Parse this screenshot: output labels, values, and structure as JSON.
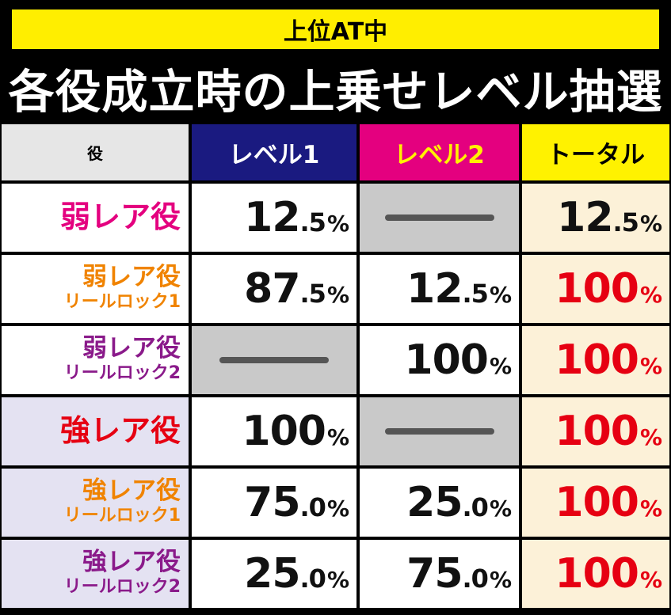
{
  "header": {
    "band_text": "上位AT中",
    "title": "各役成立時の上乗せレベル抽選"
  },
  "table": {
    "columns": [
      "役",
      "レベル1",
      "レベル2",
      "トータル"
    ],
    "rows": [
      {
        "label": "弱レア役",
        "sub": "",
        "label_color": "#e4007f",
        "l1": {
          "int": "12",
          "dec": ".5",
          "pct": "%"
        },
        "l2": null,
        "total": {
          "int": "12",
          "dec": ".5",
          "pct": "%"
        },
        "total_color": "black"
      },
      {
        "label": "弱レア役",
        "sub": "リールロック1",
        "label_color": "#f08300",
        "l1": {
          "int": "87",
          "dec": ".5",
          "pct": "%"
        },
        "l2": {
          "int": "12",
          "dec": ".5",
          "pct": "%"
        },
        "total": {
          "int": "100",
          "dec": "",
          "pct": "%"
        },
        "total_color": "red"
      },
      {
        "label": "弱レア役",
        "sub": "リールロック2",
        "label_color": "#8a1a8a",
        "l1": null,
        "l2": {
          "int": "100",
          "dec": "",
          "pct": "%"
        },
        "total": {
          "int": "100",
          "dec": "",
          "pct": "%"
        },
        "total_color": "red"
      },
      {
        "label": "強レア役",
        "sub": "",
        "label_color": "#e60012",
        "l1": {
          "int": "100",
          "dec": "",
          "pct": "%"
        },
        "l2": null,
        "total": {
          "int": "100",
          "dec": "",
          "pct": "%"
        },
        "total_color": "red"
      },
      {
        "label": "強レア役",
        "sub": "リールロック1",
        "label_color": "#f08300",
        "l1": {
          "int": "75",
          "dec": ".0",
          "pct": "%"
        },
        "l2": {
          "int": "25",
          "dec": ".0",
          "pct": "%"
        },
        "total": {
          "int": "100",
          "dec": "",
          "pct": "%"
        },
        "total_color": "red"
      },
      {
        "label": "強レア役",
        "sub": "リールロック2",
        "label_color": "#8a1a8a",
        "l1": {
          "int": "25",
          "dec": ".0",
          "pct": "%"
        },
        "l2": {
          "int": "75",
          "dec": ".0",
          "pct": "%"
        },
        "total": {
          "int": "100",
          "dec": "",
          "pct": "%"
        },
        "total_color": "red"
      }
    ]
  },
  "colors": {
    "band": "#ffee00",
    "level1_header": "#1a1a80",
    "level2_header": "#e4007f",
    "level2_header_text": "#fff200",
    "total_header": "#fff200",
    "total_cell": "#fcf1d8",
    "empty_cell": "#c9c9c9",
    "strong_label_bg": "#e4e2f2",
    "red_value": "#e60012"
  }
}
